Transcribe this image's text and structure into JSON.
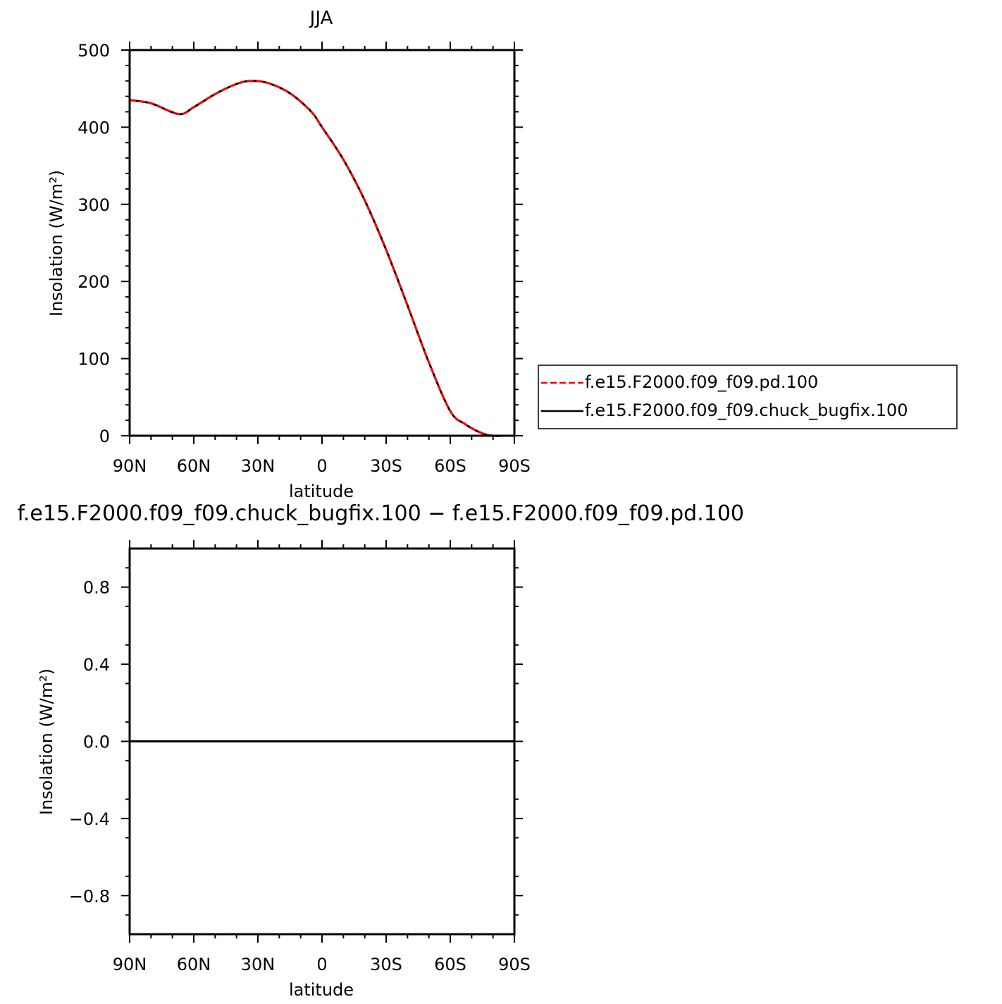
{
  "chart_data": [
    {
      "type": "line",
      "title": "JJA",
      "xlabel": "latitude",
      "ylabel": "Insolation  (W/m²)",
      "xlim": [
        90,
        -90
      ],
      "ylim": [
        0,
        500
      ],
      "x_ticks": [
        {
          "value": 90,
          "label": "90N"
        },
        {
          "value": 60,
          "label": "60N"
        },
        {
          "value": 30,
          "label": "30N"
        },
        {
          "value": 0,
          "label": "0"
        },
        {
          "value": -30,
          "label": "30S"
        },
        {
          "value": -60,
          "label": "60S"
        },
        {
          "value": -90,
          "label": "90S"
        }
      ],
      "y_ticks": [
        {
          "value": 0,
          "label": "0"
        },
        {
          "value": 100,
          "label": "100"
        },
        {
          "value": 200,
          "label": "200"
        },
        {
          "value": 300,
          "label": "300"
        },
        {
          "value": 400,
          "label": "400"
        },
        {
          "value": 500,
          "label": "500"
        }
      ],
      "x": [
        90,
        80,
        67,
        60,
        50,
        40,
        33,
        25,
        15,
        5,
        0,
        -10,
        -20,
        -30,
        -40,
        -50,
        -60,
        -67,
        -75,
        -80,
        -85,
        -90
      ],
      "series": [
        {
          "name": "f.e15.F2000.f09_f09.pd.100",
          "color": "#ff0000",
          "dash": "dashed",
          "values": [
            435,
            431,
            417,
            426,
            443,
            456,
            460,
            457,
            444,
            420,
            400,
            358,
            305,
            241,
            169,
            95,
            32,
            15,
            3,
            0,
            0,
            0
          ]
        },
        {
          "name": "f.e15.F2000.f09_f09.chuck_bugfix.100",
          "color": "#000000",
          "dash": "solid",
          "values": [
            435,
            431,
            417,
            426,
            443,
            456,
            460,
            457,
            444,
            420,
            400,
            358,
            305,
            241,
            169,
            95,
            32,
            15,
            3,
            0,
            0,
            0
          ]
        }
      ],
      "legend": "right"
    },
    {
      "type": "line",
      "title": "f.e15.F2000.f09_f09.chuck_bugfix.100 − f.e15.F2000.f09_f09.pd.100",
      "xlabel": "latitude",
      "ylabel": "Insolation  (W/m²)",
      "xlim": [
        90,
        -90
      ],
      "ylim": [
        -1,
        1
      ],
      "x_ticks": [
        {
          "value": 90,
          "label": "90N"
        },
        {
          "value": 60,
          "label": "60N"
        },
        {
          "value": 30,
          "label": "30N"
        },
        {
          "value": 0,
          "label": "0"
        },
        {
          "value": -30,
          "label": "30S"
        },
        {
          "value": -60,
          "label": "60S"
        },
        {
          "value": -90,
          "label": "90S"
        }
      ],
      "y_ticks": [
        {
          "value": -0.8,
          "label": "−0.8"
        },
        {
          "value": -0.4,
          "label": "−0.4"
        },
        {
          "value": 0,
          "label": "0.0"
        },
        {
          "value": 0.4,
          "label": "0.4"
        },
        {
          "value": 0.8,
          "label": "0.8"
        }
      ],
      "x": [
        90,
        -90
      ],
      "series": [
        {
          "color": "#000000",
          "dash": "solid",
          "values": [
            0,
            0
          ]
        }
      ]
    }
  ]
}
